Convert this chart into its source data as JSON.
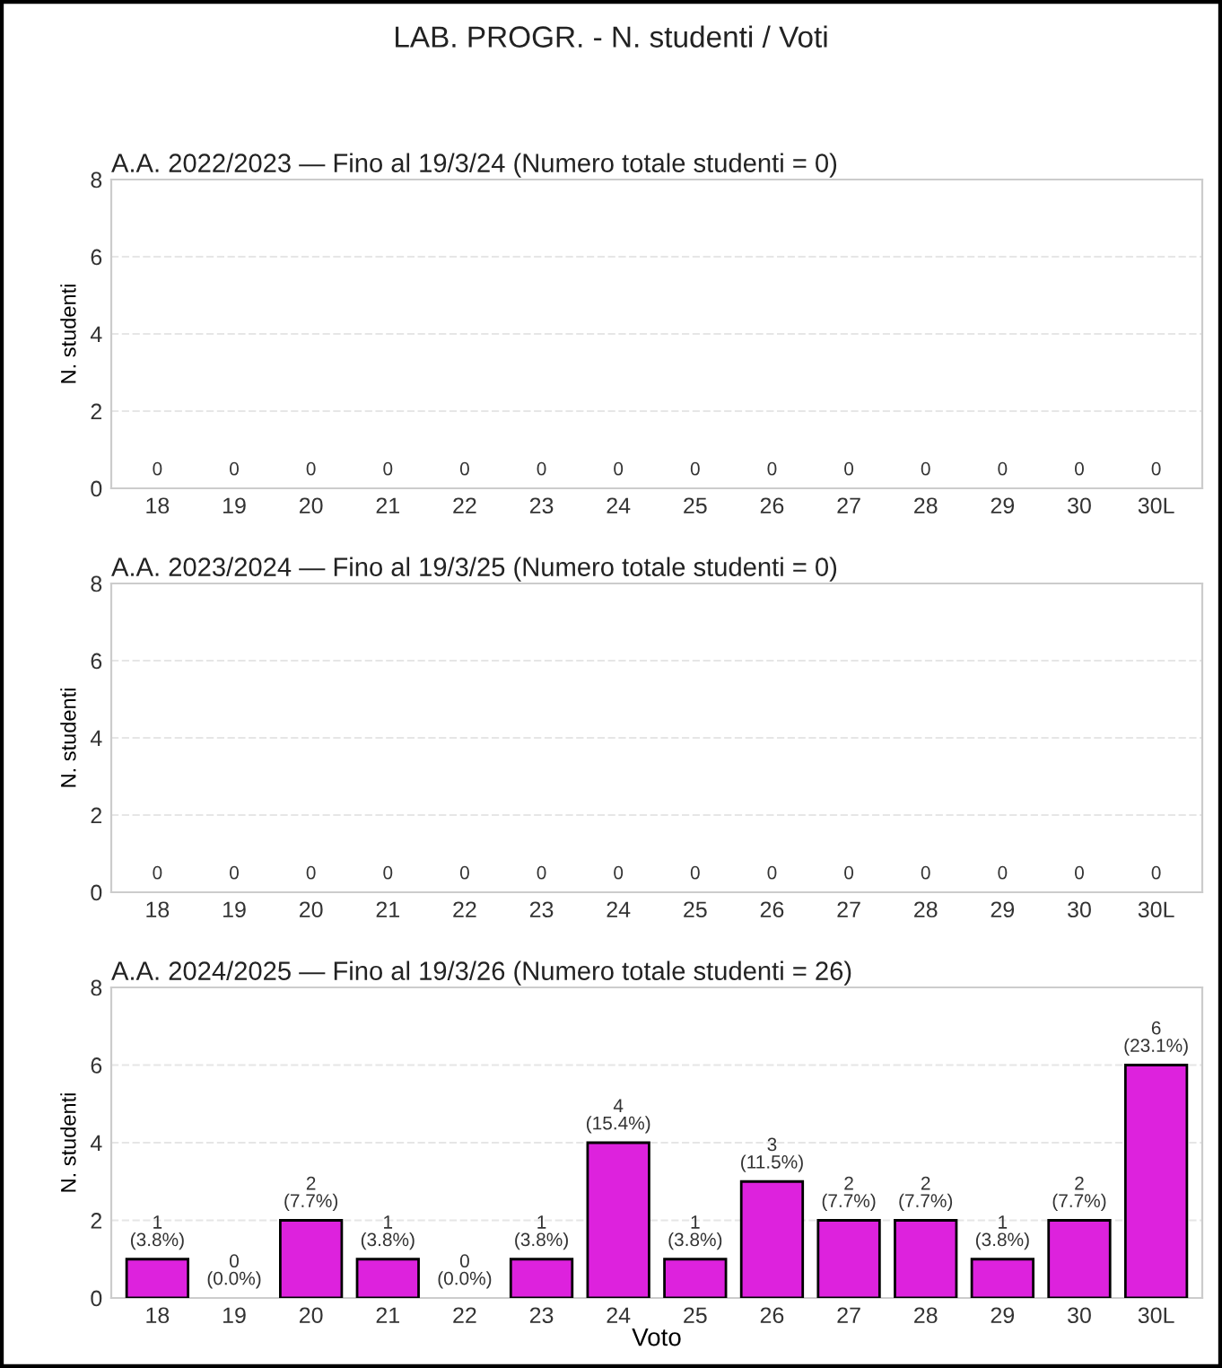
{
  "chart_data": [
    {
      "type": "bar",
      "title": "LAB. PROGR. - N. studenti / Voti",
      "subtitle": "A.A. 2022/2023 — Fino al 19/3/24 (Numero totale studenti = 0)",
      "ylabel": "N. studenti",
      "categories": [
        "18",
        "19",
        "20",
        "21",
        "22",
        "23",
        "24",
        "25",
        "26",
        "27",
        "28",
        "29",
        "30",
        "30L"
      ],
      "values": [
        0,
        0,
        0,
        0,
        0,
        0,
        0,
        0,
        0,
        0,
        0,
        0,
        0,
        0
      ],
      "value_labels": [
        "0",
        "0",
        "0",
        "0",
        "0",
        "0",
        "0",
        "0",
        "0",
        "0",
        "0",
        "0",
        "0",
        "0"
      ],
      "color": "#dd22dd",
      "ylim": [
        0,
        8
      ],
      "yticks": [
        0,
        2,
        4,
        6,
        8
      ],
      "grid": "y"
    },
    {
      "type": "bar",
      "subtitle": "A.A. 2023/2024 — Fino al 19/3/25 (Numero totale studenti = 0)",
      "ylabel": "N. studenti",
      "categories": [
        "18",
        "19",
        "20",
        "21",
        "22",
        "23",
        "24",
        "25",
        "26",
        "27",
        "28",
        "29",
        "30",
        "30L"
      ],
      "values": [
        0,
        0,
        0,
        0,
        0,
        0,
        0,
        0,
        0,
        0,
        0,
        0,
        0,
        0
      ],
      "value_labels": [
        "0",
        "0",
        "0",
        "0",
        "0",
        "0",
        "0",
        "0",
        "0",
        "0",
        "0",
        "0",
        "0",
        "0"
      ],
      "color": "#dd22dd",
      "ylim": [
        0,
        8
      ],
      "yticks": [
        0,
        2,
        4,
        6,
        8
      ],
      "grid": "y"
    },
    {
      "type": "bar",
      "subtitle": "A.A. 2024/2025 — Fino al 19/3/26 (Numero totale studenti = 26)",
      "xlabel": "Voto",
      "ylabel": "N. studenti",
      "categories": [
        "18",
        "19",
        "20",
        "21",
        "22",
        "23",
        "24",
        "25",
        "26",
        "27",
        "28",
        "29",
        "30",
        "30L"
      ],
      "values": [
        1,
        0,
        2,
        1,
        0,
        1,
        4,
        1,
        3,
        2,
        2,
        1,
        2,
        6
      ],
      "value_labels": [
        "1\n(3.8%)",
        "0\n(0.0%)",
        "2\n(7.7%)",
        "1\n(3.8%)",
        "0\n(0.0%)",
        "1\n(3.8%)",
        "4\n(15.4%)",
        "1\n(3.8%)",
        "3\n(11.5%)",
        "2\n(7.7%)",
        "2\n(7.7%)",
        "1\n(3.8%)",
        "2\n(7.7%)",
        "6\n(23.1%)"
      ],
      "color": "#dd22dd",
      "ylim": [
        0,
        8
      ],
      "yticks": [
        0,
        2,
        4,
        6,
        8
      ],
      "grid": "y"
    }
  ]
}
